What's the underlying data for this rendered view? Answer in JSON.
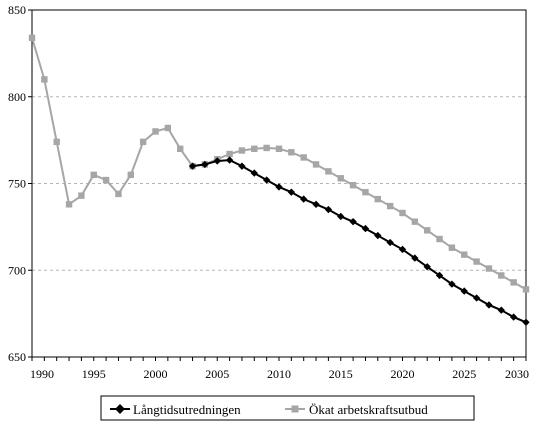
{
  "chart_data": {
    "type": "line",
    "title": "",
    "xlabel": "",
    "ylabel": "",
    "xlim": [
      1990,
      2030
    ],
    "ylim": [
      650,
      850
    ],
    "x_ticks": [
      "1990",
      "1995",
      "2000",
      "2005",
      "2010",
      "2015",
      "2020",
      "2025",
      "2030"
    ],
    "y_ticks": [
      "650",
      "700",
      "750",
      "800",
      "850"
    ],
    "grid": "horizontal dashed",
    "legend_position": "bottom",
    "series": [
      {
        "name": "Långtidsutredningen",
        "color": "#000000",
        "marker": "diamond",
        "x": [
          2003,
          2004,
          2005,
          2006,
          2007,
          2008,
          2009,
          2010,
          2011,
          2012,
          2013,
          2014,
          2015,
          2016,
          2017,
          2018,
          2019,
          2020,
          2021,
          2022,
          2023,
          2024,
          2025,
          2026,
          2027,
          2028,
          2029,
          2030
        ],
        "values": [
          760,
          761,
          763,
          763.5,
          760,
          756,
          752,
          748,
          745,
          741,
          738,
          735,
          731,
          728,
          724,
          720,
          716,
          712,
          707,
          702,
          697,
          692,
          688,
          684,
          680,
          677,
          673,
          670
        ]
      },
      {
        "name": "Ökat arbetskraftsutbud",
        "color": "#a6a6a6",
        "marker": "square",
        "x": [
          1990,
          1991,
          1992,
          1993,
          1994,
          1995,
          1996,
          1997,
          1998,
          1999,
          2000,
          2001,
          2002,
          2003,
          2004,
          2005,
          2006,
          2007,
          2008,
          2009,
          2010,
          2011,
          2012,
          2013,
          2014,
          2015,
          2016,
          2017,
          2018,
          2019,
          2020,
          2021,
          2022,
          2023,
          2024,
          2025,
          2026,
          2027,
          2028,
          2029,
          2030
        ],
        "values": [
          834,
          810,
          774,
          738,
          743,
          755,
          752,
          744,
          755,
          774,
          780,
          782,
          770,
          760,
          761,
          764,
          767,
          769,
          770,
          770.5,
          770,
          768,
          765,
          761,
          757,
          753,
          749,
          745,
          741,
          737,
          733,
          728,
          723,
          718,
          713,
          709,
          705,
          701,
          697,
          693,
          689
        ]
      }
    ]
  }
}
